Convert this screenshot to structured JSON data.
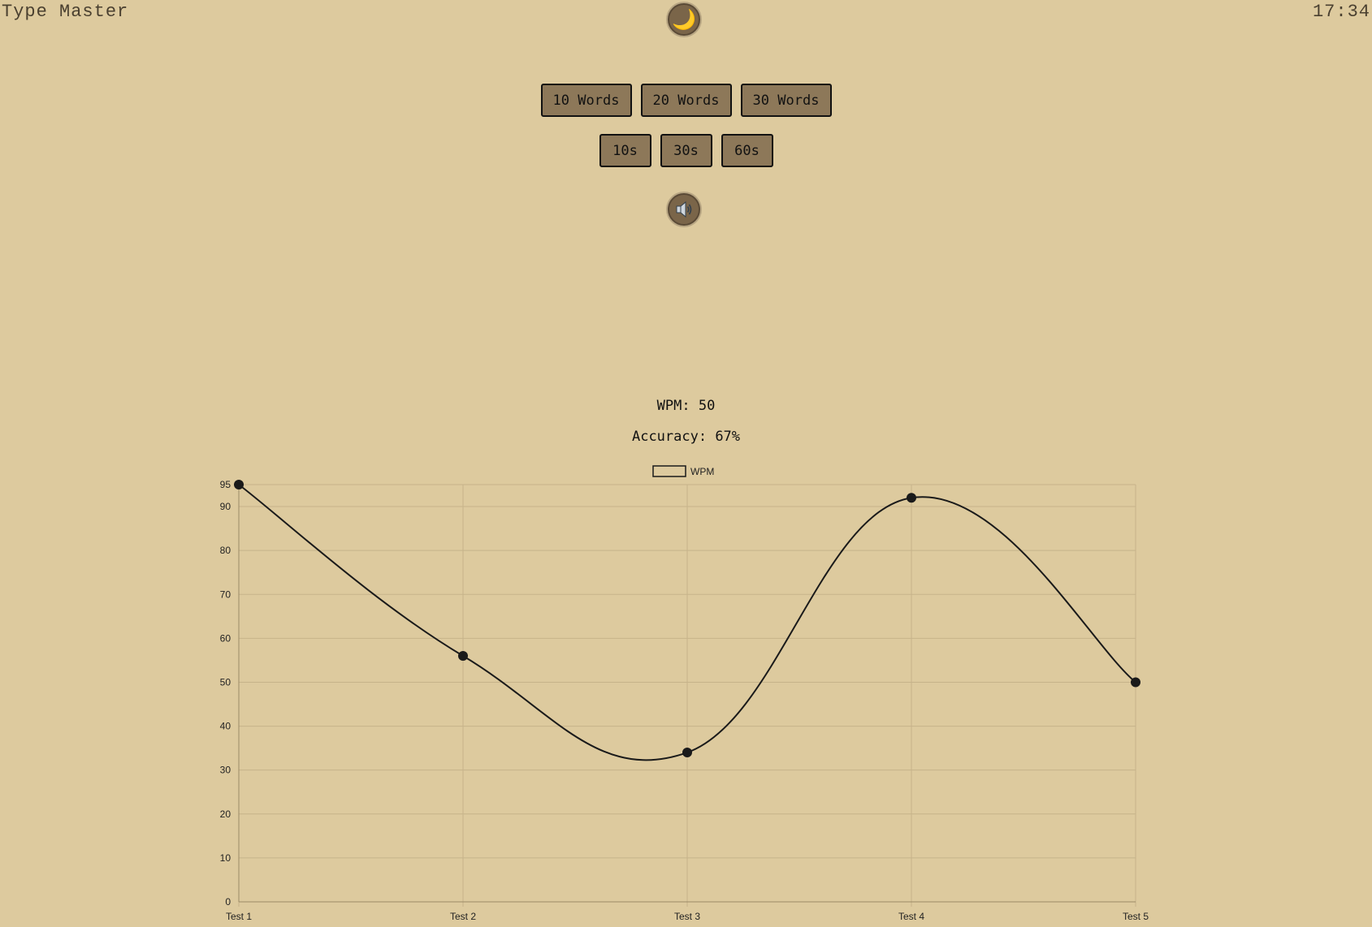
{
  "header": {
    "app_title": "Type Master",
    "clock": "17:34"
  },
  "controls": {
    "theme_icon": "moon-icon",
    "sound_icon": "speaker-icon",
    "word_modes": [
      "10 Words",
      "20 Words",
      "30 Words"
    ],
    "time_modes": [
      "10s",
      "30s",
      "60s"
    ]
  },
  "stats": {
    "wpm": "WPM: 50",
    "accuracy": "Accuracy: 67%"
  },
  "colors": {
    "background": "#ddca9e",
    "button": "#8d7859",
    "line": "#1a1a1a",
    "grid": "#c6b38a"
  },
  "chart_data": {
    "type": "line",
    "categories": [
      "Test 1",
      "Test 2",
      "Test 3",
      "Test 4",
      "Test 5"
    ],
    "series": [
      {
        "name": "WPM",
        "values": [
          95,
          56,
          34,
          92,
          50
        ]
      }
    ],
    "ylim": [
      0,
      95
    ],
    "yticks": [
      0,
      10,
      20,
      30,
      40,
      50,
      60,
      70,
      80,
      90,
      95
    ],
    "legend_position": "top-center",
    "grid": true,
    "smooth": true
  }
}
